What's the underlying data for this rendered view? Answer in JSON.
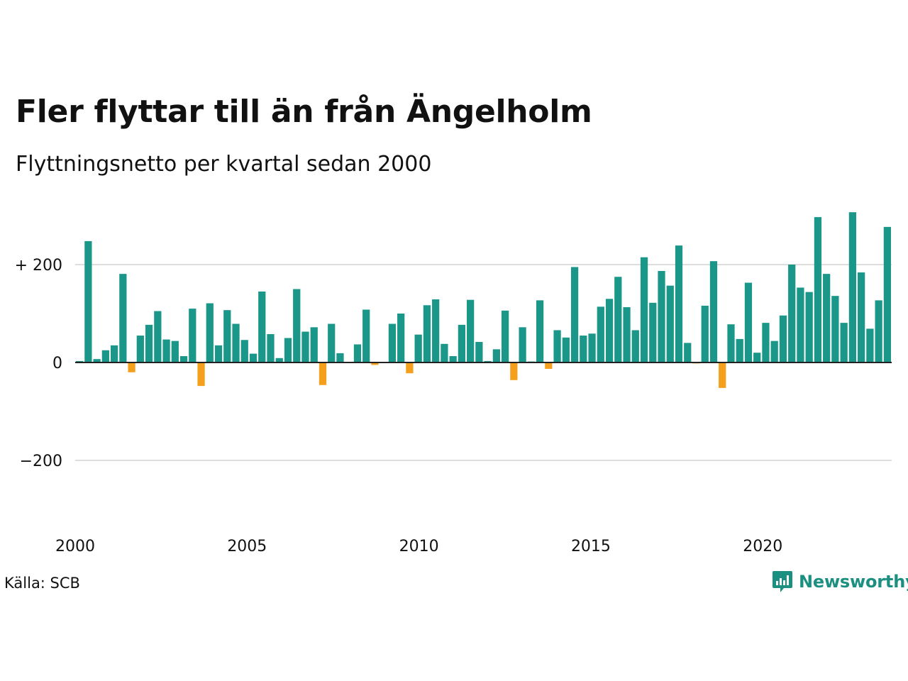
{
  "title": "Fler flyttar till än från Ängelholm",
  "subtitle": "Flyttningsnetto per kvartal sedan 2000",
  "source": "Källa: SCB",
  "brand": {
    "name": "Newsworthy",
    "icon": "newsworthy-logo-icon"
  },
  "colors": {
    "positive": "#1b978a",
    "negative": "#f5a01d",
    "grid": "#dddddd",
    "zero": "#222222"
  },
  "chart_data": {
    "type": "bar",
    "title": "Fler flyttar till än från Ängelholm",
    "subtitle": "Flyttningsnetto per kvartal sedan 2000",
    "xlabel": "",
    "ylabel": "",
    "ylim": [
      -300,
      330
    ],
    "xlim": [
      2000,
      2023.75
    ],
    "y_ticks": [
      {
        "value": 200,
        "label": "+ 200"
      },
      {
        "value": 0,
        "label": "0"
      },
      {
        "value": -200,
        "label": "−200"
      }
    ],
    "x_ticks": [
      {
        "value": 2000,
        "label": "2000"
      },
      {
        "value": 2005,
        "label": "2005"
      },
      {
        "value": 2010,
        "label": "2010"
      },
      {
        "value": 2015,
        "label": "2015"
      },
      {
        "value": 2020,
        "label": "2020"
      }
    ],
    "grid": true,
    "start_year": 2000,
    "periods_per_year": 4,
    "values": [
      3,
      248,
      7,
      25,
      35,
      181,
      -20,
      55,
      77,
      105,
      47,
      44,
      13,
      110,
      -48,
      121,
      35,
      107,
      79,
      46,
      18,
      145,
      58,
      9,
      50,
      150,
      63,
      72,
      -46,
      79,
      19,
      0,
      37,
      108,
      -5,
      0,
      79,
      100,
      -22,
      57,
      117,
      129,
      38,
      13,
      77,
      128,
      42,
      3,
      27,
      106,
      -36,
      72,
      2,
      127,
      -13,
      66,
      51,
      195,
      55,
      59,
      114,
      130,
      175,
      113,
      66,
      215,
      122,
      187,
      157,
      239,
      40,
      -2,
      116,
      207,
      -52,
      78,
      48,
      163,
      20,
      81,
      44,
      96,
      200,
      153,
      144,
      297,
      181,
      136,
      81,
      307,
      184,
      69,
      127,
      277
    ]
  }
}
